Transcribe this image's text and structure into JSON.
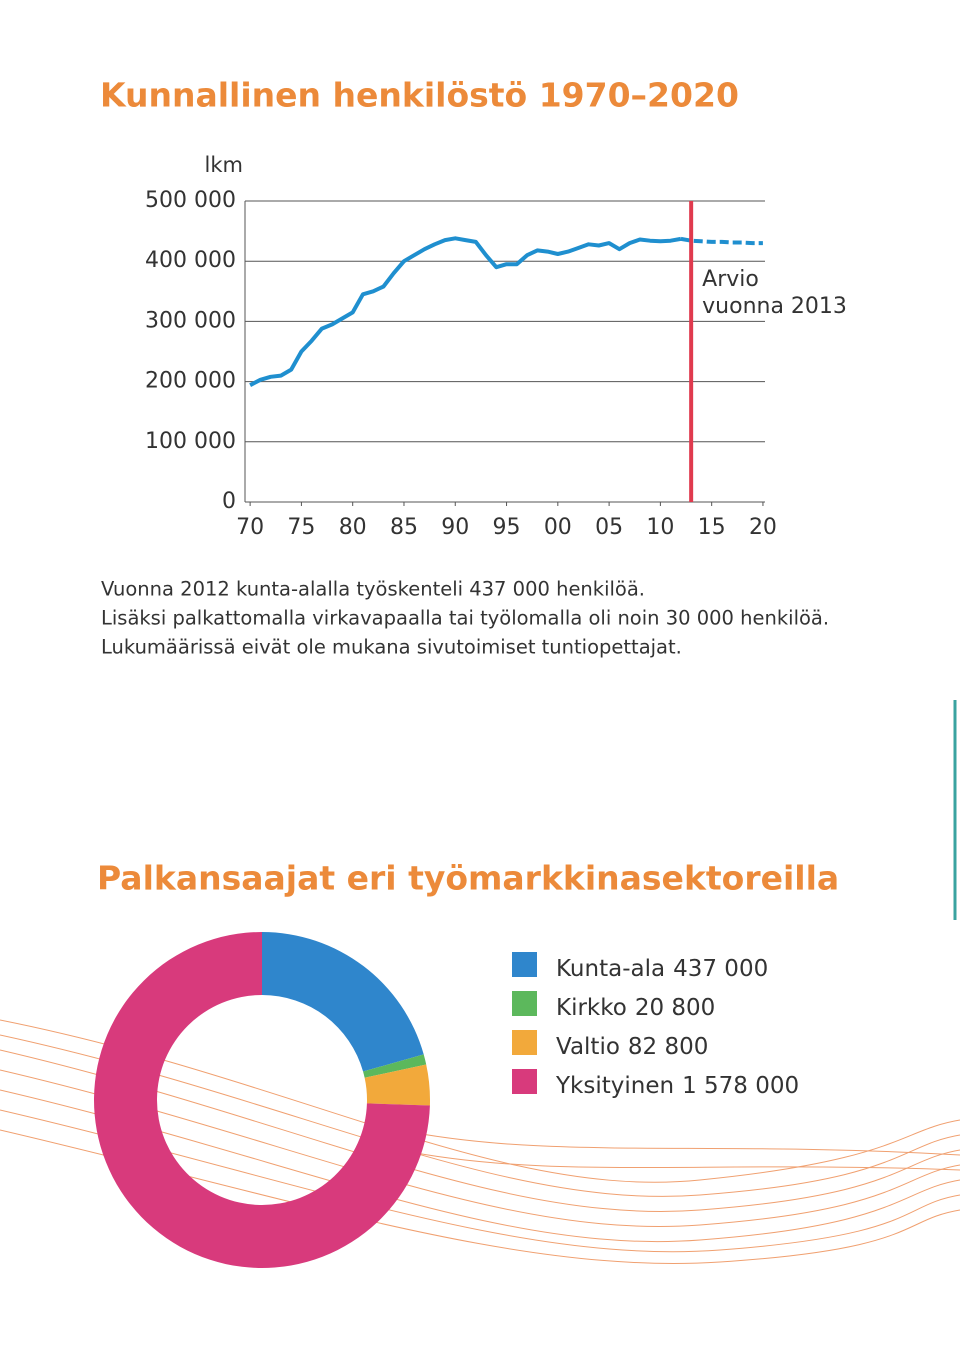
{
  "chart_data": [
    {
      "type": "line",
      "title": "Kunnallinen henkilöstö 1970–2020",
      "ylabel": "lkm",
      "x": [
        1970,
        1971,
        1972,
        1973,
        1974,
        1975,
        1976,
        1977,
        1978,
        1979,
        1980,
        1981,
        1982,
        1983,
        1984,
        1985,
        1986,
        1987,
        1988,
        1989,
        1990,
        1991,
        1992,
        1993,
        1994,
        1995,
        1996,
        1997,
        1998,
        1999,
        2000,
        2001,
        2002,
        2003,
        2004,
        2005,
        2006,
        2007,
        2008,
        2009,
        2010,
        2011,
        2012,
        2013,
        2014,
        2015,
        2016,
        2017,
        2018,
        2019,
        2020
      ],
      "series": [
        {
          "color": "#1f8fcf",
          "dash": false,
          "values": [
            194000,
            203000,
            208000,
            210000,
            220000,
            250000,
            268000,
            288000,
            295000,
            305000,
            315000,
            345000,
            350000,
            358000,
            380000,
            400000,
            410000,
            420000,
            428000,
            435000,
            438000,
            435000,
            432000,
            410000,
            390000,
            395000,
            395000,
            410000,
            418000,
            416000,
            412000,
            416000,
            422000,
            428000,
            426000,
            430000,
            420000,
            430000,
            436000,
            434000,
            433000,
            434000,
            437000,
            null,
            null,
            null,
            null,
            null,
            null,
            null,
            null
          ]
        },
        {
          "color": "#1f8fcf",
          "dash": true,
          "values": [
            null,
            null,
            null,
            null,
            null,
            null,
            null,
            null,
            null,
            null,
            null,
            null,
            null,
            null,
            null,
            null,
            null,
            null,
            null,
            null,
            null,
            null,
            null,
            null,
            null,
            null,
            null,
            null,
            null,
            null,
            null,
            null,
            null,
            null,
            null,
            null,
            null,
            null,
            null,
            null,
            null,
            null,
            437000,
            434000,
            433000,
            432000,
            432000,
            431000,
            431000,
            430000,
            430000
          ]
        }
      ],
      "xlim": [
        1969.5,
        2020.2
      ],
      "xticks": [
        {
          "value": 1970,
          "label": "70"
        },
        {
          "value": 1975,
          "label": "75"
        },
        {
          "value": 1980,
          "label": "80"
        },
        {
          "value": 1985,
          "label": "85"
        },
        {
          "value": 1990,
          "label": "90"
        },
        {
          "value": 1995,
          "label": "95"
        },
        {
          "value": 2000,
          "label": "00"
        },
        {
          "value": 2005,
          "label": "05"
        },
        {
          "value": 2010,
          "label": "10"
        },
        {
          "value": 2015,
          "label": "15"
        },
        {
          "value": 2020,
          "label": "20"
        }
      ],
      "ylim": [
        0,
        500000
      ],
      "yticks": [
        0,
        {
          "value": 100000,
          "label": "100 000"
        },
        {
          "value": 200000,
          "label": "200 000"
        },
        {
          "value": 300000,
          "label": "300 000"
        },
        {
          "value": 400000,
          "label": "400 000"
        },
        {
          "value": 500000,
          "label": "500 000"
        }
      ],
      "grid": true,
      "vline": {
        "x": 2013,
        "color": "#e03a4e",
        "label": [
          "Arvio",
          "vuonna 2013"
        ]
      },
      "notes": [
        "Vuonna 2012 kunta-alalla työskenteli 437 000 henkilöä.",
        "Lisäksi palkattomalla virkavapaalla tai työlomalla oli noin 30 000 henkilöä.",
        "Lukumäärissä eivät ole mukana sivutoimiset tuntiopettajat."
      ]
    },
    {
      "type": "donut",
      "title": "Palkansaajat eri työmarkkinasektoreilla",
      "categories": [
        "Kunta-ala",
        "Kirkko",
        "Valtio",
        "Yksityinen"
      ],
      "values": [
        437000,
        20800,
        82800,
        1578000
      ],
      "value_labels": [
        "437 000",
        "20 800",
        "82 800",
        "1 578 000"
      ],
      "colors": [
        "#2f86cc",
        "#5cb85c",
        "#f2a93b",
        "#d83a7c"
      ]
    }
  ]
}
